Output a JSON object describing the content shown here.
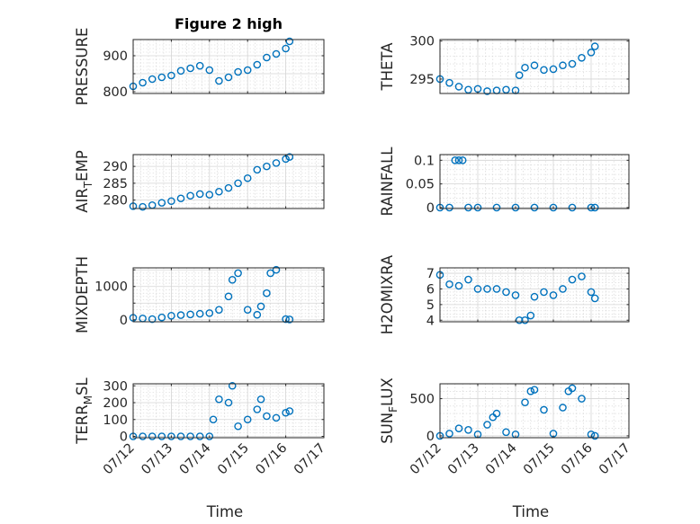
{
  "colors": {
    "marker": "#0072bd",
    "axis": "#262626"
  },
  "x_ticks": [
    "07/12",
    "07/13",
    "07/14",
    "07/15",
    "07/16",
    "07/17"
  ],
  "x_label": "Time",
  "chart_data": [
    {
      "type": "scatter",
      "title": "Figure 2 high",
      "ylabel_main": "PRESSURE",
      "ylabel_sub": "",
      "ylim": [
        795,
        945
      ],
      "yticks": [
        800,
        850,
        900
      ],
      "yticklabels": [
        "800",
        "",
        "900"
      ],
      "grid": true,
      "marker": "circle",
      "x": [
        0.0,
        0.25,
        0.5,
        0.75,
        1.0,
        1.25,
        1.5,
        1.75,
        2.0,
        2.25,
        2.5,
        2.75,
        3.0,
        3.25,
        3.5,
        3.75,
        4.0,
        4.1
      ],
      "y": [
        815,
        825,
        835,
        840,
        845,
        858,
        865,
        872,
        860,
        830,
        840,
        855,
        860,
        875,
        895,
        905,
        920,
        940
      ]
    },
    {
      "type": "scatter",
      "title": "",
      "ylabel_main": "THETA",
      "ylabel_sub": "",
      "ylim": [
        293.1,
        300.2
      ],
      "yticks": [
        295,
        300
      ],
      "yticklabels": [
        "295",
        "300"
      ],
      "grid": true,
      "marker": "circle",
      "x": [
        0.0,
        0.25,
        0.5,
        0.75,
        1.0,
        1.25,
        1.5,
        1.75,
        2.0,
        2.1,
        2.25,
        2.5,
        2.75,
        3.0,
        3.25,
        3.5,
        3.75,
        4.0,
        4.1
      ],
      "y": [
        295.0,
        294.5,
        294.0,
        293.6,
        293.7,
        293.4,
        293.5,
        293.6,
        293.5,
        295.5,
        296.5,
        296.8,
        296.2,
        296.3,
        296.8,
        297.0,
        297.8,
        298.5,
        299.3
      ]
    },
    {
      "type": "scatter",
      "title": "",
      "ylabel_main": "AIR",
      "ylabel_sub": "T",
      "ylabel_rest": "EMP",
      "ylim": [
        277.5,
        293.5
      ],
      "yticks": [
        280,
        285,
        290
      ],
      "yticklabels": [
        "280",
        "285",
        "290"
      ],
      "grid": true,
      "marker": "circle",
      "x": [
        0.0,
        0.25,
        0.5,
        0.75,
        1.0,
        1.25,
        1.5,
        1.75,
        2.0,
        2.25,
        2.5,
        2.75,
        3.0,
        3.25,
        3.5,
        3.75,
        4.0,
        4.1
      ],
      "y": [
        278.2,
        278.0,
        278.5,
        279.2,
        279.7,
        280.5,
        281.3,
        281.8,
        281.6,
        282.5,
        283.6,
        285.0,
        286.5,
        289.0,
        290.0,
        291.0,
        292.2,
        292.8
      ]
    },
    {
      "type": "scatter",
      "title": "",
      "ylabel_main": "RAINFALL",
      "ylabel_sub": "",
      "ylim": [
        -0.002,
        0.112
      ],
      "yticks": [
        0,
        0.05,
        0.1
      ],
      "yticklabels": [
        "0",
        "0.05",
        "0.1"
      ],
      "grid": true,
      "marker": "circle",
      "x": [
        0.0,
        0.25,
        0.4,
        0.5,
        0.6,
        0.75,
        1.0,
        1.5,
        2.0,
        2.5,
        3.0,
        3.5,
        4.0,
        4.1
      ],
      "y": [
        0,
        0,
        0.1,
        0.1,
        0.1,
        0,
        0,
        0,
        0,
        0,
        0,
        0,
        0,
        0
      ]
    },
    {
      "type": "scatter",
      "title": "",
      "ylabel_main": "MIXDEPTH",
      "ylabel_sub": "",
      "ylim": [
        -60,
        1560
      ],
      "yticks": [
        0,
        500,
        1000,
        1500
      ],
      "yticklabels": [
        "0",
        "",
        "1000",
        ""
      ],
      "grid": true,
      "marker": "circle",
      "x": [
        0.0,
        0.25,
        0.5,
        0.75,
        1.0,
        1.25,
        1.5,
        1.75,
        2.0,
        2.25,
        2.5,
        2.6,
        2.75,
        3.0,
        3.25,
        3.35,
        3.5,
        3.6,
        3.75,
        4.0,
        4.1
      ],
      "y": [
        60,
        40,
        20,
        70,
        120,
        140,
        160,
        180,
        200,
        300,
        700,
        1200,
        1400,
        300,
        150,
        400,
        800,
        1400,
        1500,
        20,
        10
      ]
    },
    {
      "type": "scatter",
      "title": "",
      "ylabel_main": "H2OMIXRA",
      "ylabel_sub": "",
      "ylim": [
        3.9,
        7.35
      ],
      "yticks": [
        4,
        5,
        6,
        7
      ],
      "yticklabels": [
        "4",
        "5",
        "6",
        "7"
      ],
      "grid": true,
      "marker": "circle",
      "x": [
        0.0,
        0.25,
        0.5,
        0.75,
        1.0,
        1.25,
        1.5,
        1.75,
        2.0,
        2.1,
        2.25,
        2.4,
        2.5,
        2.75,
        3.0,
        3.25,
        3.5,
        3.75,
        4.0,
        4.1
      ],
      "y": [
        6.9,
        6.3,
        6.2,
        6.6,
        6.0,
        6.0,
        6.0,
        5.8,
        5.6,
        4.0,
        4.0,
        4.3,
        5.5,
        5.8,
        5.6,
        6.0,
        6.6,
        6.8,
        5.8,
        5.4
      ]
    },
    {
      "type": "scatter",
      "title": "",
      "ylabel_main": "TERR",
      "ylabel_sub": "M",
      "ylabel_rest": "SL",
      "ylim": [
        -8,
        312
      ],
      "yticks": [
        0,
        100,
        200,
        300
      ],
      "yticklabels": [
        "0",
        "100",
        "200",
        "300"
      ],
      "grid": true,
      "marker": "circle",
      "x": [
        0.0,
        0.25,
        0.5,
        0.75,
        1.0,
        1.25,
        1.5,
        1.75,
        2.0,
        2.1,
        2.25,
        2.5,
        2.6,
        2.75,
        3.0,
        3.25,
        3.35,
        3.5,
        3.75,
        4.0,
        4.1
      ],
      "y": [
        0,
        0,
        0,
        0,
        0,
        0,
        0,
        0,
        0,
        100,
        220,
        200,
        300,
        60,
        100,
        160,
        220,
        120,
        110,
        140,
        150
      ]
    },
    {
      "type": "scatter",
      "title": "",
      "ylabel_main": "SUN",
      "ylabel_sub": "F",
      "ylabel_rest": "LUX",
      "ylim": [
        -25,
        700
      ],
      "yticks": [
        0,
        500
      ],
      "yticklabels": [
        "0",
        "500"
      ],
      "grid": true,
      "marker": "circle",
      "x": [
        0.0,
        0.25,
        0.5,
        0.75,
        1.0,
        1.25,
        1.4,
        1.5,
        1.75,
        2.0,
        2.25,
        2.4,
        2.5,
        2.75,
        3.0,
        3.25,
        3.4,
        3.5,
        3.75,
        4.0,
        4.1
      ],
      "y": [
        0,
        30,
        100,
        80,
        20,
        150,
        250,
        300,
        50,
        20,
        450,
        600,
        620,
        350,
        30,
        380,
        600,
        640,
        500,
        20,
        0
      ]
    }
  ]
}
